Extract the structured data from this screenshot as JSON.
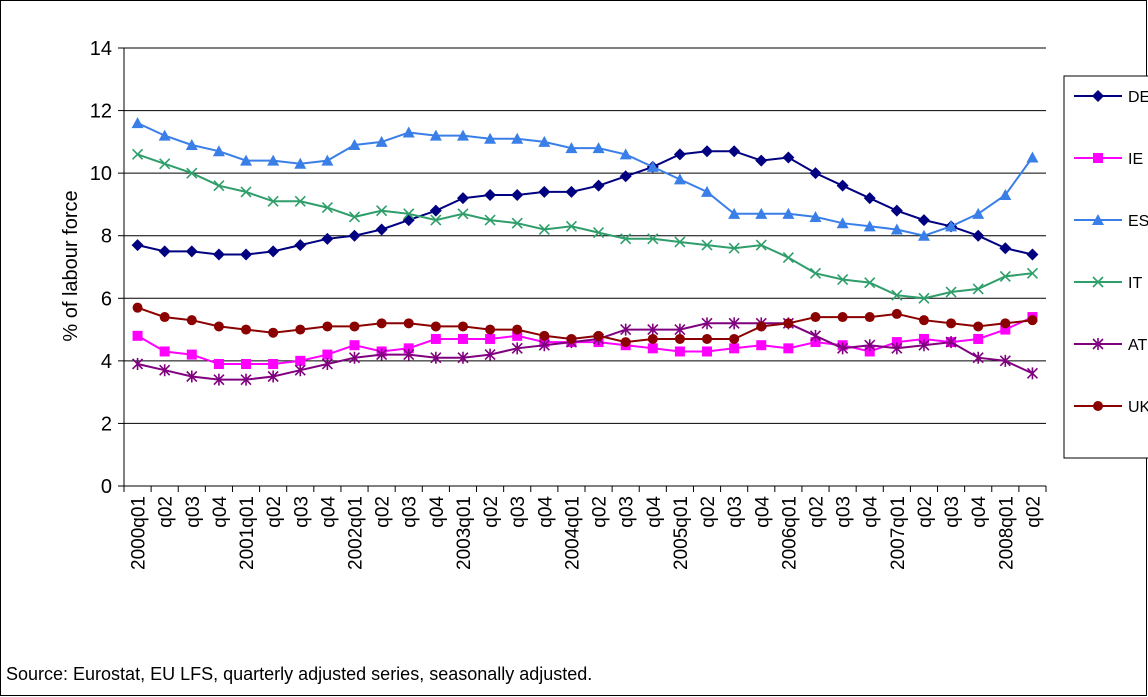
{
  "chart_data": {
    "type": "line",
    "title": "",
    "ylabel": "% of labour force",
    "xlabel": "",
    "ylim": [
      0,
      14
    ],
    "yticks": [
      0,
      2,
      4,
      6,
      8,
      10,
      12,
      14
    ],
    "grid": "horizontal",
    "legend_position": "right",
    "categories": [
      "2000q01",
      "q02",
      "q03",
      "q04",
      "2001q01",
      "q02",
      "q03",
      "q04",
      "2002q01",
      "q02",
      "q03",
      "q04",
      "2003q01",
      "q02",
      "q03",
      "q04",
      "2004q01",
      "q02",
      "q03",
      "q04",
      "2005q01",
      "q02",
      "q03",
      "q04",
      "2006q01",
      "q02",
      "q03",
      "q04",
      "2007q01",
      "q02",
      "q03",
      "q04",
      "2008q01",
      "q02"
    ],
    "series": [
      {
        "name": "DE",
        "color": "#000080",
        "marker": "diamond",
        "values": [
          7.7,
          7.5,
          7.5,
          7.4,
          7.4,
          7.5,
          7.7,
          7.9,
          8.0,
          8.2,
          8.5,
          8.8,
          9.2,
          9.3,
          9.3,
          9.4,
          9.4,
          9.6,
          9.9,
          10.2,
          10.6,
          10.7,
          10.7,
          10.4,
          10.5,
          10.0,
          9.6,
          9.2,
          8.8,
          8.5,
          8.3,
          8.0,
          7.6,
          7.4
        ]
      },
      {
        "name": "IE",
        "color": "#FF00FF",
        "marker": "square",
        "values": [
          4.8,
          4.3,
          4.2,
          3.9,
          3.9,
          3.9,
          4.0,
          4.2,
          4.5,
          4.3,
          4.4,
          4.7,
          4.7,
          4.7,
          4.8,
          4.6,
          4.6,
          4.6,
          4.5,
          4.4,
          4.3,
          4.3,
          4.4,
          4.5,
          4.4,
          4.6,
          4.5,
          4.3,
          4.6,
          4.7,
          4.6,
          4.7,
          5.0,
          5.4
        ]
      },
      {
        "name": "ES",
        "color": "#3A7FE8",
        "marker": "triangle",
        "values": [
          11.6,
          11.2,
          10.9,
          10.7,
          10.4,
          10.4,
          10.3,
          10.4,
          10.9,
          11.0,
          11.3,
          11.2,
          11.2,
          11.1,
          11.1,
          11.0,
          10.8,
          10.8,
          10.6,
          10.2,
          9.8,
          9.4,
          8.7,
          8.7,
          8.7,
          8.6,
          8.4,
          8.3,
          8.2,
          8.0,
          8.3,
          8.7,
          9.3,
          10.5
        ]
      },
      {
        "name": "IT",
        "color": "#2E9E6A",
        "marker": "x",
        "values": [
          10.6,
          10.3,
          10.0,
          9.6,
          9.4,
          9.1,
          9.1,
          8.9,
          8.6,
          8.8,
          8.7,
          8.5,
          8.7,
          8.5,
          8.4,
          8.2,
          8.3,
          8.1,
          7.9,
          7.9,
          7.8,
          7.7,
          7.6,
          7.7,
          7.3,
          6.8,
          6.6,
          6.5,
          6.1,
          6.0,
          6.2,
          6.3,
          6.7,
          6.8
        ]
      },
      {
        "name": "AT",
        "color": "#800080",
        "marker": "star",
        "values": [
          3.9,
          3.7,
          3.5,
          3.4,
          3.4,
          3.5,
          3.7,
          3.9,
          4.1,
          4.2,
          4.2,
          4.1,
          4.1,
          4.2,
          4.4,
          4.5,
          4.6,
          4.7,
          5.0,
          5.0,
          5.0,
          5.2,
          5.2,
          5.2,
          5.2,
          4.8,
          4.4,
          4.5,
          4.4,
          4.5,
          4.6,
          4.1,
          4.0,
          3.6
        ]
      },
      {
        "name": "UK",
        "color": "#8B0000",
        "marker": "circle",
        "values": [
          5.7,
          5.4,
          5.3,
          5.1,
          5.0,
          4.9,
          5.0,
          5.1,
          5.1,
          5.2,
          5.2,
          5.1,
          5.1,
          5.0,
          5.0,
          4.8,
          4.7,
          4.8,
          4.6,
          4.7,
          4.7,
          4.7,
          4.7,
          5.1,
          5.2,
          5.4,
          5.4,
          5.4,
          5.5,
          5.3,
          5.2,
          5.1,
          5.2,
          5.3
        ]
      }
    ]
  },
  "footer": {
    "source": "Source: Eurostat, EU LFS, quarterly adjusted series, seasonally adjusted."
  },
  "legend_labels_shown": [
    "DE",
    "IE",
    "ES",
    "IT",
    "AT",
    "UK"
  ]
}
